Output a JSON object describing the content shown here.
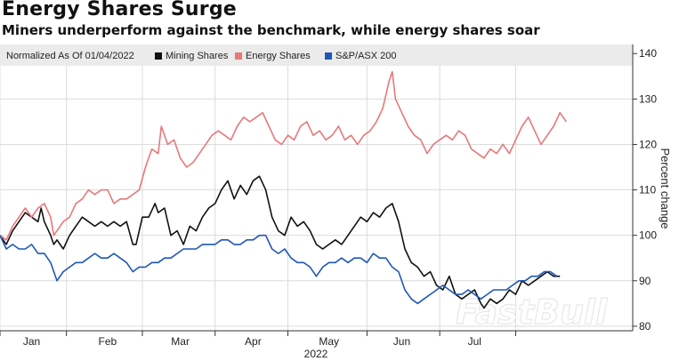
{
  "chart_data": {
    "type": "line",
    "title": "Energy Shares Surge",
    "subtitle": "Miners underperform against the benchmark, while energy shares soar",
    "normalized_note": "Normalized As Of 01/04/2022",
    "ylabel": "Percent change",
    "xlabel": "2022",
    "ylim": [
      79,
      142
    ],
    "yticks": [
      80,
      90,
      100,
      110,
      120,
      130,
      140
    ],
    "xlim": [
      0,
      200
    ],
    "xticks": [
      {
        "label": "Jan",
        "pos": 10
      },
      {
        "label": "Feb",
        "pos": 34
      },
      {
        "label": "Mar",
        "pos": 57
      },
      {
        "label": "Apr",
        "pos": 80
      },
      {
        "label": "May",
        "pos": 104
      },
      {
        "label": "Jun",
        "pos": 127
      },
      {
        "label": "Jul",
        "pos": 150
      }
    ],
    "month_gridlines": [
      0,
      21,
      45,
      68,
      91,
      116,
      139,
      163
    ],
    "series": [
      {
        "name": "Mining Shares",
        "color": "#111111",
        "points": [
          [
            0,
            100
          ],
          [
            2,
            98
          ],
          [
            4,
            101
          ],
          [
            6,
            103
          ],
          [
            8,
            105
          ],
          [
            10,
            104
          ],
          [
            12,
            103
          ],
          [
            13,
            106
          ],
          [
            14,
            103
          ],
          [
            16,
            100
          ],
          [
            17,
            98
          ],
          [
            18,
            99
          ],
          [
            20,
            97
          ],
          [
            22,
            100
          ],
          [
            24,
            102
          ],
          [
            26,
            104
          ],
          [
            28,
            103
          ],
          [
            30,
            102
          ],
          [
            32,
            103
          ],
          [
            34,
            102
          ],
          [
            36,
            103
          ],
          [
            38,
            102
          ],
          [
            40,
            103
          ],
          [
            42,
            98
          ],
          [
            43,
            98
          ],
          [
            45,
            104
          ],
          [
            47,
            104
          ],
          [
            49,
            107
          ],
          [
            50,
            105
          ],
          [
            52,
            106
          ],
          [
            54,
            100
          ],
          [
            56,
            101
          ],
          [
            58,
            98
          ],
          [
            60,
            102
          ],
          [
            62,
            101
          ],
          [
            64,
            104
          ],
          [
            66,
            106
          ],
          [
            68,
            107
          ],
          [
            70,
            110
          ],
          [
            72,
            112
          ],
          [
            74,
            108
          ],
          [
            76,
            111
          ],
          [
            78,
            109
          ],
          [
            80,
            112
          ],
          [
            82,
            113
          ],
          [
            84,
            110
          ],
          [
            86,
            104
          ],
          [
            88,
            101
          ],
          [
            90,
            100
          ],
          [
            92,
            104
          ],
          [
            94,
            102
          ],
          [
            96,
            103
          ],
          [
            98,
            101
          ],
          [
            100,
            98
          ],
          [
            102,
            97
          ],
          [
            104,
            98
          ],
          [
            106,
            99
          ],
          [
            108,
            98
          ],
          [
            110,
            100
          ],
          [
            112,
            102
          ],
          [
            114,
            104
          ],
          [
            116,
            103
          ],
          [
            118,
            105
          ],
          [
            120,
            104
          ],
          [
            122,
            106
          ],
          [
            124,
            107
          ],
          [
            126,
            103
          ],
          [
            128,
            97
          ],
          [
            130,
            94
          ],
          [
            132,
            93
          ],
          [
            134,
            91
          ],
          [
            136,
            92
          ],
          [
            138,
            89
          ],
          [
            140,
            88
          ],
          [
            142,
            91
          ],
          [
            144,
            87
          ],
          [
            146,
            86
          ],
          [
            148,
            87
          ],
          [
            150,
            88
          ],
          [
            152,
            85
          ],
          [
            153,
            84
          ],
          [
            155,
            86
          ],
          [
            157,
            85
          ],
          [
            159,
            86
          ],
          [
            161,
            88
          ],
          [
            163,
            87
          ],
          [
            165,
            90
          ],
          [
            167,
            89
          ],
          [
            169,
            90
          ],
          [
            171,
            91
          ],
          [
            173,
            92
          ],
          [
            175,
            91
          ],
          [
            177,
            91
          ]
        ]
      },
      {
        "name": "Energy Shares",
        "color": "#e8777a",
        "points": [
          [
            0,
            100
          ],
          [
            2,
            99
          ],
          [
            4,
            102
          ],
          [
            6,
            104
          ],
          [
            8,
            106
          ],
          [
            10,
            104
          ],
          [
            12,
            106
          ],
          [
            14,
            107
          ],
          [
            16,
            104
          ],
          [
            17,
            100
          ],
          [
            18,
            101
          ],
          [
            20,
            103
          ],
          [
            22,
            104
          ],
          [
            24,
            107
          ],
          [
            26,
            108
          ],
          [
            28,
            110
          ],
          [
            30,
            109
          ],
          [
            32,
            110
          ],
          [
            34,
            110
          ],
          [
            36,
            107
          ],
          [
            38,
            108
          ],
          [
            40,
            108
          ],
          [
            42,
            109
          ],
          [
            44,
            110
          ],
          [
            46,
            115
          ],
          [
            48,
            119
          ],
          [
            50,
            118
          ],
          [
            51,
            124
          ],
          [
            53,
            120
          ],
          [
            55,
            121
          ],
          [
            57,
            117
          ],
          [
            59,
            115
          ],
          [
            61,
            116
          ],
          [
            63,
            118
          ],
          [
            65,
            120
          ],
          [
            67,
            122
          ],
          [
            69,
            123
          ],
          [
            71,
            122
          ],
          [
            73,
            121
          ],
          [
            75,
            124
          ],
          [
            77,
            126
          ],
          [
            79,
            125
          ],
          [
            81,
            126
          ],
          [
            83,
            127
          ],
          [
            85,
            124
          ],
          [
            87,
            121
          ],
          [
            89,
            120
          ],
          [
            91,
            122
          ],
          [
            93,
            121
          ],
          [
            95,
            124
          ],
          [
            97,
            125
          ],
          [
            99,
            122
          ],
          [
            101,
            123
          ],
          [
            103,
            121
          ],
          [
            105,
            122
          ],
          [
            107,
            124
          ],
          [
            109,
            121
          ],
          [
            111,
            122
          ],
          [
            113,
            120
          ],
          [
            115,
            122
          ],
          [
            117,
            123
          ],
          [
            119,
            125
          ],
          [
            121,
            128
          ],
          [
            123,
            134
          ],
          [
            124,
            136
          ],
          [
            125,
            130
          ],
          [
            127,
            127
          ],
          [
            129,
            124
          ],
          [
            131,
            122
          ],
          [
            133,
            121
          ],
          [
            135,
            118
          ],
          [
            137,
            120
          ],
          [
            139,
            121
          ],
          [
            141,
            122
          ],
          [
            143,
            121
          ],
          [
            145,
            123
          ],
          [
            147,
            122
          ],
          [
            149,
            119
          ],
          [
            151,
            118
          ],
          [
            153,
            117
          ],
          [
            155,
            119
          ],
          [
            157,
            118
          ],
          [
            159,
            120
          ],
          [
            161,
            118
          ],
          [
            163,
            121
          ],
          [
            165,
            124
          ],
          [
            167,
            126
          ],
          [
            169,
            123
          ],
          [
            171,
            120
          ],
          [
            173,
            122
          ],
          [
            175,
            124
          ],
          [
            177,
            127
          ],
          [
            179,
            125
          ]
        ]
      },
      {
        "name": "S&P/ASX 200",
        "color": "#1f56b8",
        "points": [
          [
            0,
            100
          ],
          [
            2,
            97
          ],
          [
            4,
            98
          ],
          [
            6,
            97
          ],
          [
            8,
            97
          ],
          [
            10,
            98
          ],
          [
            12,
            96
          ],
          [
            14,
            96
          ],
          [
            16,
            94
          ],
          [
            18,
            90
          ],
          [
            20,
            92
          ],
          [
            22,
            93
          ],
          [
            24,
            94
          ],
          [
            26,
            94
          ],
          [
            28,
            95
          ],
          [
            30,
            96
          ],
          [
            32,
            95
          ],
          [
            34,
            95
          ],
          [
            36,
            96
          ],
          [
            38,
            95
          ],
          [
            40,
            94
          ],
          [
            42,
            92
          ],
          [
            44,
            93
          ],
          [
            46,
            93
          ],
          [
            48,
            94
          ],
          [
            50,
            94
          ],
          [
            52,
            95
          ],
          [
            54,
            95
          ],
          [
            56,
            96
          ],
          [
            58,
            97
          ],
          [
            60,
            97
          ],
          [
            62,
            97
          ],
          [
            64,
            98
          ],
          [
            66,
            98
          ],
          [
            68,
            98
          ],
          [
            70,
            99
          ],
          [
            72,
            99
          ],
          [
            74,
            98
          ],
          [
            76,
            98
          ],
          [
            78,
            99
          ],
          [
            80,
            99
          ],
          [
            82,
            100
          ],
          [
            84,
            100
          ],
          [
            86,
            97
          ],
          [
            88,
            96
          ],
          [
            90,
            97
          ],
          [
            92,
            95
          ],
          [
            94,
            94
          ],
          [
            96,
            94
          ],
          [
            98,
            93
          ],
          [
            100,
            91
          ],
          [
            102,
            93
          ],
          [
            104,
            94
          ],
          [
            106,
            94
          ],
          [
            108,
            95
          ],
          [
            110,
            94
          ],
          [
            112,
            95
          ],
          [
            114,
            95
          ],
          [
            116,
            94
          ],
          [
            118,
            96
          ],
          [
            120,
            95
          ],
          [
            122,
            95
          ],
          [
            124,
            93
          ],
          [
            126,
            92
          ],
          [
            128,
            88
          ],
          [
            130,
            86
          ],
          [
            132,
            85
          ],
          [
            134,
            86
          ],
          [
            136,
            87
          ],
          [
            138,
            88
          ],
          [
            140,
            89
          ],
          [
            142,
            88
          ],
          [
            144,
            87
          ],
          [
            146,
            87
          ],
          [
            148,
            88
          ],
          [
            150,
            87
          ],
          [
            152,
            86
          ],
          [
            154,
            87
          ],
          [
            156,
            88
          ],
          [
            158,
            88
          ],
          [
            160,
            88
          ],
          [
            162,
            89
          ],
          [
            164,
            90
          ],
          [
            166,
            90
          ],
          [
            168,
            91
          ],
          [
            170,
            91
          ],
          [
            172,
            92
          ],
          [
            174,
            92
          ],
          [
            176,
            91
          ]
        ]
      }
    ]
  }
}
